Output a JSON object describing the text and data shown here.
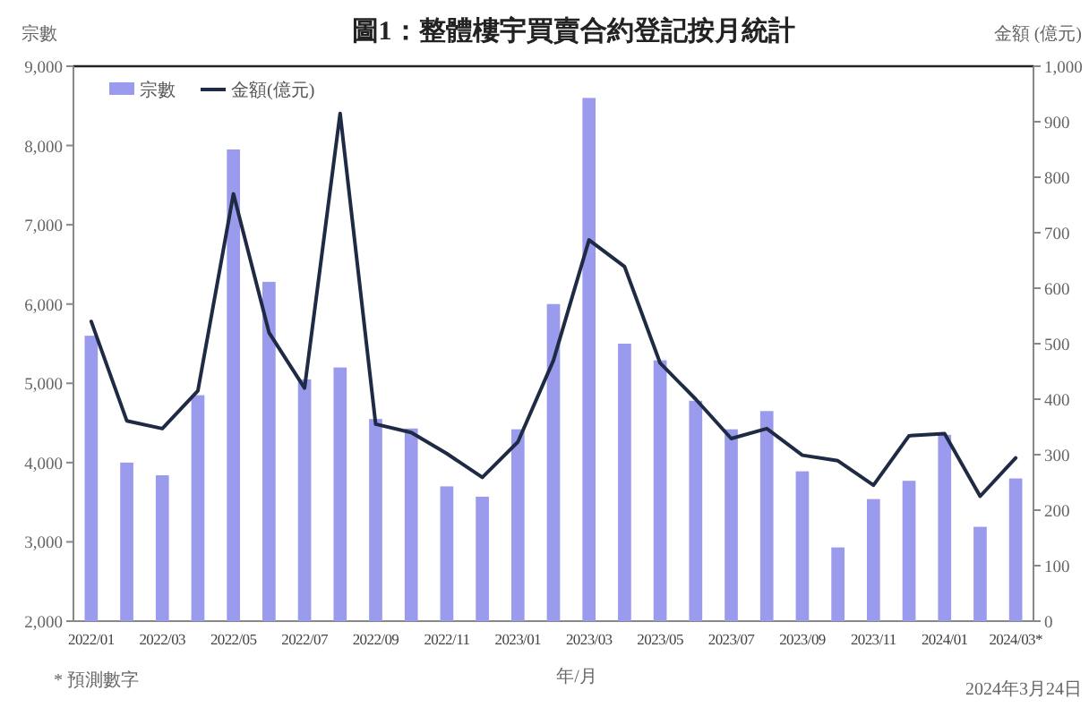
{
  "chart_data": {
    "type": "bar",
    "title": "圖1：整體樓宇買賣合約登記按月統計",
    "xlabel": "年/月",
    "ylabel": "宗數",
    "y2label": "金額 (億元)",
    "categories": [
      "2022/01",
      null,
      "2022/03",
      null,
      "2022/05",
      null,
      "2022/07",
      null,
      "2022/09",
      null,
      "2022/11",
      null,
      "2023/01",
      null,
      "2023/03",
      null,
      "2023/05",
      null,
      "2023/07",
      null,
      "2023/09",
      null,
      "2023/11",
      null,
      "2024/01",
      null,
      "2024/03*"
    ],
    "series": [
      {
        "name": "宗數",
        "color": "#9b9bee",
        "values": [
          5600,
          4000,
          3840,
          4850,
          7950,
          6280,
          5050,
          5200,
          4550,
          4430,
          3700,
          3570,
          4420,
          6000,
          8600,
          5500,
          5290,
          4780,
          4420,
          4650,
          3890,
          2930,
          3540,
          3770,
          4350,
          3190,
          3800
        ]
      },
      {
        "name": "金額(億元)",
        "type": "line",
        "axis": "y2",
        "color": "#1f2a44",
        "values": [
          540,
          361,
          347,
          415,
          770,
          520,
          420,
          915,
          355,
          340,
          302,
          259,
          323,
          470,
          687,
          639,
          465,
          400,
          329,
          347,
          299,
          289,
          245,
          334,
          338,
          225,
          294
        ]
      }
    ],
    "ylim": [
      2000,
      9000
    ],
    "yticks": [
      {
        "value": 2000,
        "label": "2,000"
      },
      {
        "value": 3000,
        "label": "3,000"
      },
      {
        "value": 4000,
        "label": "4,000"
      },
      {
        "value": 5000,
        "label": "5,000"
      },
      {
        "value": 6000,
        "label": "6,000"
      },
      {
        "value": 7000,
        "label": "7,000"
      },
      {
        "value": 8000,
        "label": "8,000"
      },
      {
        "value": 9000,
        "label": "9,000"
      }
    ],
    "y2lim": [
      0,
      1000
    ],
    "y2ticks": [
      0,
      100,
      200,
      300,
      400,
      500,
      600,
      700,
      800,
      900,
      {
        "value": 1000,
        "label": "1,000"
      }
    ],
    "legend": "top left",
    "annotations": [
      "* 預測數字",
      "2024年3月24日"
    ]
  }
}
